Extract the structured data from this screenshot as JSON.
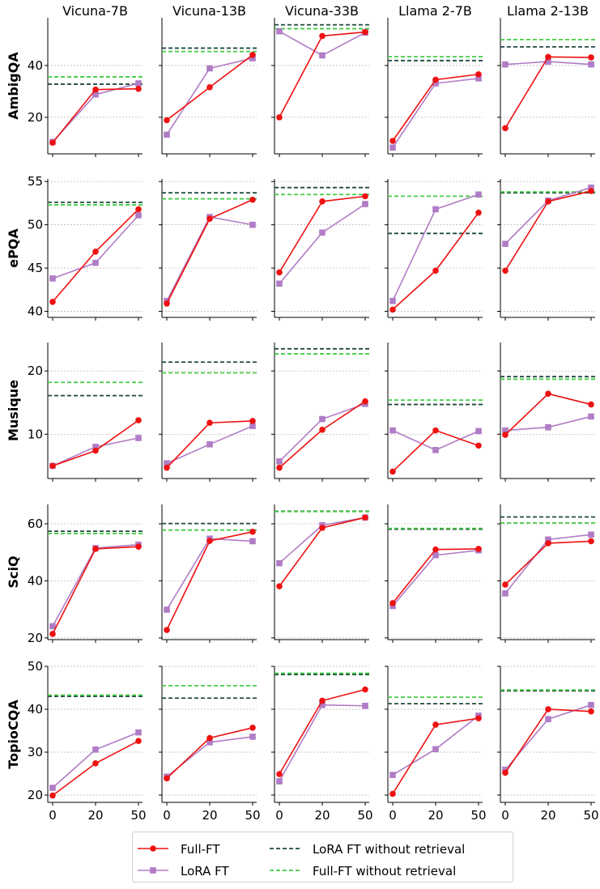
{
  "chart_data": {
    "type": "line",
    "x": [
      0,
      20,
      50
    ],
    "columns": [
      "Vicuna-7B",
      "Vicuna-13B",
      "Vicuna-33B",
      "Llama 2-7B",
      "Llama 2-13B"
    ],
    "colors": {
      "full_ft": "#ee1111",
      "lora_ft": "#b07cc6",
      "lora_noret": "#1e4a3e",
      "full_noret": "#44cc44"
    },
    "legend": {
      "placement": "bottom-center",
      "entries": [
        {
          "key": "full_ft",
          "label": "Full-FT"
        },
        {
          "key": "lora_ft",
          "label": "LoRA FT"
        },
        {
          "key": "lora_noret",
          "label": "LoRA FT without retrieval"
        },
        {
          "key": "full_noret",
          "label": "Full-FT without retrieval"
        }
      ]
    },
    "rows": [
      {
        "dataset": "AmbigQA",
        "ylim": [
          5.9,
          58.4
        ],
        "yticks": [
          20,
          40
        ],
        "panels": [
          {
            "full_ft": [
              10.2,
              30.7,
              31.0
            ],
            "lora_ft": [
              10.5,
              28.8,
              33.1
            ],
            "lora_noret": 32.8,
            "full_noret": 35.6
          },
          {
            "full_ft": [
              18.9,
              31.6,
              44.1
            ],
            "lora_ft": [
              13.3,
              38.9,
              42.8
            ],
            "lora_noret": 46.7,
            "full_noret": 45.4
          },
          {
            "full_ft": [
              20.0,
              51.4,
              52.9
            ],
            "lora_ft": [
              53.2,
              43.9,
              52.7
            ],
            "lora_noret": 55.7,
            "full_noret": 54.2
          },
          {
            "full_ft": [
              10.9,
              34.5,
              36.6
            ],
            "lora_ft": [
              8.3,
              33.1,
              35.0
            ],
            "lora_noret": 41.9,
            "full_noret": 43.4
          },
          {
            "full_ft": [
              15.8,
              43.3,
              43.1
            ],
            "lora_ft": [
              40.4,
              41.5,
              40.4
            ],
            "lora_noret": 47.2,
            "full_noret": 50.0
          }
        ]
      },
      {
        "dataset": "ePQA",
        "ylim": [
          39.3,
          55.3
        ],
        "yticks": [
          40,
          45,
          50,
          55
        ],
        "panels": [
          {
            "full_ft": [
              41.1,
              46.9,
              51.8
            ],
            "lora_ft": [
              43.8,
              45.6,
              51.1
            ],
            "lora_noret": 52.6,
            "full_noret": 52.3
          },
          {
            "full_ft": [
              40.9,
              50.7,
              52.9
            ],
            "lora_ft": [
              41.2,
              50.9,
              50.0
            ],
            "lora_noret": 53.7,
            "full_noret": 53.0
          },
          {
            "full_ft": [
              44.5,
              52.7,
              53.3
            ],
            "lora_ft": [
              43.2,
              49.1,
              52.4
            ],
            "lora_noret": 54.3,
            "full_noret": 53.5
          },
          {
            "full_ft": [
              40.2,
              44.7,
              51.4
            ],
            "lora_ft": [
              41.2,
              51.8,
              53.5
            ],
            "lora_noret": 49.0,
            "full_noret": 53.3
          },
          {
            "full_ft": [
              44.7,
              52.7,
              53.9
            ],
            "lora_ft": [
              47.8,
              52.8,
              54.3
            ],
            "lora_noret": 53.7,
            "full_noret": 53.8
          }
        ]
      },
      {
        "dataset": "Musique",
        "ylim": [
          3.0,
          24.5
        ],
        "yticks": [
          10,
          20
        ],
        "panels": [
          {
            "full_ft": [
              5.0,
              7.4,
              12.2
            ],
            "lora_ft": [
              5.0,
              8.0,
              9.4
            ],
            "lora_noret": 16.1,
            "full_noret": 18.2
          },
          {
            "full_ft": [
              4.7,
              11.8,
              12.1
            ],
            "lora_ft": [
              5.4,
              8.4,
              11.3
            ],
            "lora_noret": 21.4,
            "full_noret": 19.7
          },
          {
            "full_ft": [
              4.7,
              10.7,
              15.2
            ],
            "lora_ft": [
              5.7,
              12.4,
              14.8
            ],
            "lora_noret": 23.5,
            "full_noret": 22.7
          },
          {
            "full_ft": [
              4.1,
              10.6,
              8.2
            ],
            "lora_ft": [
              10.6,
              7.5,
              10.5
            ],
            "lora_noret": 14.7,
            "full_noret": 15.4
          },
          {
            "full_ft": [
              9.9,
              16.4,
              14.7
            ],
            "lora_ft": [
              10.6,
              11.1,
              12.8
            ],
            "lora_noret": 19.1,
            "full_noret": 18.7
          }
        ]
      },
      {
        "dataset": "SciQ",
        "ylim": [
          19.4,
          66.8
        ],
        "yticks": [
          20,
          40,
          60
        ],
        "panels": [
          {
            "full_ft": [
              21.4,
              51.2,
              52.0
            ],
            "lora_ft": [
              24.1,
              51.5,
              52.7
            ],
            "lora_noret": 57.4,
            "full_noret": 56.6
          },
          {
            "full_ft": [
              22.8,
              54.0,
              57.2
            ],
            "lora_ft": [
              29.9,
              54.8,
              53.9
            ],
            "lora_noret": 60.1,
            "full_noret": 57.8
          },
          {
            "full_ft": [
              38.1,
              58.6,
              62.2
            ],
            "lora_ft": [
              46.2,
              59.5,
              62.2
            ],
            "lora_noret": 64.4,
            "full_noret": 64.3
          },
          {
            "full_ft": [
              32.2,
              51.0,
              51.2
            ],
            "lora_ft": [
              31.2,
              49.0,
              50.7
            ],
            "lora_noret": 58.1,
            "full_noret": 58.4
          },
          {
            "full_ft": [
              38.7,
              53.2,
              53.9
            ],
            "lora_ft": [
              35.6,
              54.5,
              56.2
            ],
            "lora_noret": 62.4,
            "full_noret": 60.3
          }
        ]
      },
      {
        "dataset": "TopioCQA",
        "ylim": [
          18.3,
          50.0
        ],
        "yticks": [
          20,
          30,
          40,
          50
        ],
        "panels": [
          {
            "full_ft": [
              19.9,
              27.4,
              32.6
            ],
            "lora_ft": [
              21.7,
              30.6,
              34.6
            ],
            "lora_noret": 43.0,
            "full_noret": 43.3
          },
          {
            "full_ft": [
              23.9,
              33.3,
              35.7
            ],
            "lora_ft": [
              24.3,
              32.3,
              33.6
            ],
            "lora_noret": 42.6,
            "full_noret": 45.5
          },
          {
            "full_ft": [
              24.9,
              42.0,
              44.6
            ],
            "lora_ft": [
              23.2,
              41.0,
              40.8
            ],
            "lora_noret": 48.1,
            "full_noret": 48.4
          },
          {
            "full_ft": [
              20.3,
              36.4,
              37.9
            ],
            "lora_ft": [
              24.7,
              30.7,
              38.5
            ],
            "lora_noret": 41.3,
            "full_noret": 42.8
          },
          {
            "full_ft": [
              25.2,
              40.0,
              39.5
            ],
            "lora_ft": [
              25.9,
              37.7,
              41.0
            ],
            "lora_noret": 44.3,
            "full_noret": 44.5
          }
        ]
      }
    ]
  }
}
